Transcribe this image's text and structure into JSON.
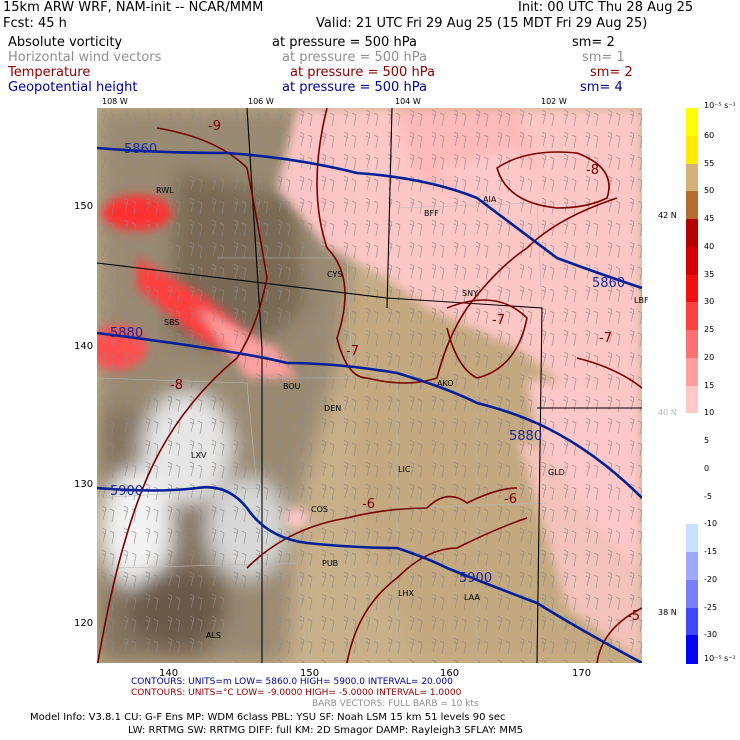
{
  "header": {
    "model": "15km ARW WRF, NAM-init -- NCAR/MMM",
    "init": "Init: 00 UTC Thu 28 Aug 25",
    "fcst": "Fcst:   45 h",
    "valid": "Valid: 21 UTC Fri 29 Aug 25 (15 MDT Fri 29 Aug 25)"
  },
  "fields": [
    {
      "name": "Absolute vorticity",
      "level": "at pressure =  500 hPa",
      "sm": "sm= 2",
      "color": "#000000"
    },
    {
      "name": "Horizontal wind vectors",
      "level": "at pressure =  500 hPa",
      "sm": "sm= 1",
      "color": "#909090"
    },
    {
      "name": "Temperature",
      "level": "at pressure =  500 hPa",
      "sm": "sm= 2",
      "color": "#8b0000"
    },
    {
      "name": "Geopotential height",
      "level": "at pressure =  500 hPa",
      "sm": "sm= 4",
      "color": "#00008b"
    }
  ],
  "lon_labels_top": [
    "108 W",
    "106 W",
    "104 W",
    "102 W"
  ],
  "lat_labels_right": [
    "42 N",
    "40 N",
    "38 N"
  ],
  "grid_labels_left": [
    "150",
    "140",
    "130",
    "120"
  ],
  "grid_labels_bottom": [
    "140",
    "150",
    "160",
    "170"
  ],
  "cities": [
    "RWL",
    "BFF",
    "AIA",
    "CYS",
    "SNY",
    "LBF",
    "SBS",
    "AKO",
    "BOU",
    "DEN",
    "LXV",
    "LIC",
    "GLD",
    "COS",
    "PUB",
    "LHX",
    "LAA",
    "ALS"
  ],
  "height_contours": [
    "5860",
    "5860",
    "5880",
    "5880",
    "5900",
    "5900"
  ],
  "temp_contours": [
    "-9",
    "-8",
    "-8",
    "-7",
    "-7",
    "-7",
    "-6",
    "-6",
    "-5"
  ],
  "colorbar": {
    "units": "10⁻⁵ s⁻¹",
    "units_bottom": "10⁻⁵ s⁻¹",
    "labels": [
      "60",
      "55",
      "50",
      "45",
      "40",
      "35",
      "30",
      "25",
      "20",
      "15",
      "10",
      "5",
      "0",
      "-5",
      "-10",
      "-15",
      "-20",
      "-25",
      "-30"
    ],
    "colors": [
      "#ffff00",
      "#ffea00",
      "#d2b27a",
      "#b56d2e",
      "#b50000",
      "#d40000",
      "#f01010",
      "#ff4040",
      "#ff7070",
      "#ff9e9e",
      "#ffc8c8",
      "#ffffff",
      "#ffffff",
      "#ffffff",
      "#ffffff",
      "#c8e0ff",
      "#a0a8ff",
      "#7880ff",
      "#4048ff",
      "#0000ff"
    ]
  },
  "footer": {
    "contours1": "CONTOURS:  UNITS=m   LOW=   5860.0       HIGH=   5900.0       INTERVAL=   20.000",
    "contours2": "CONTOURS:  UNITS=°C  LOW= -9.0000         HIGH= -5.0000       INTERVAL=   1.0000",
    "barbs": "BARB VECTORS:  FULL BARB = 10 kts",
    "model_info": "Model Info: V3.8.1      CU: G-F Ens  MP: WDM 6class   PBL: YSU       SF: Noah LSM     15 km    51 levels    90 sec",
    "model_info2": "LW: RRTMG    SW: RRTMG   DIFF: full    KM: 2D Smagor DAMP: Rayleigh3   SFLAY: MM5"
  }
}
